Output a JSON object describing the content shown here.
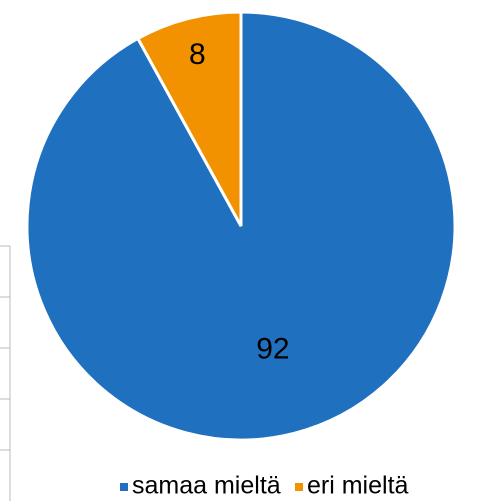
{
  "chart_data": {
    "type": "pie",
    "categories": [
      "samaa mieltä",
      "eri mieltä"
    ],
    "values": [
      92,
      8
    ],
    "colors": [
      "#1f70bf",
      "#f39200"
    ],
    "legend": "bottom"
  }
}
